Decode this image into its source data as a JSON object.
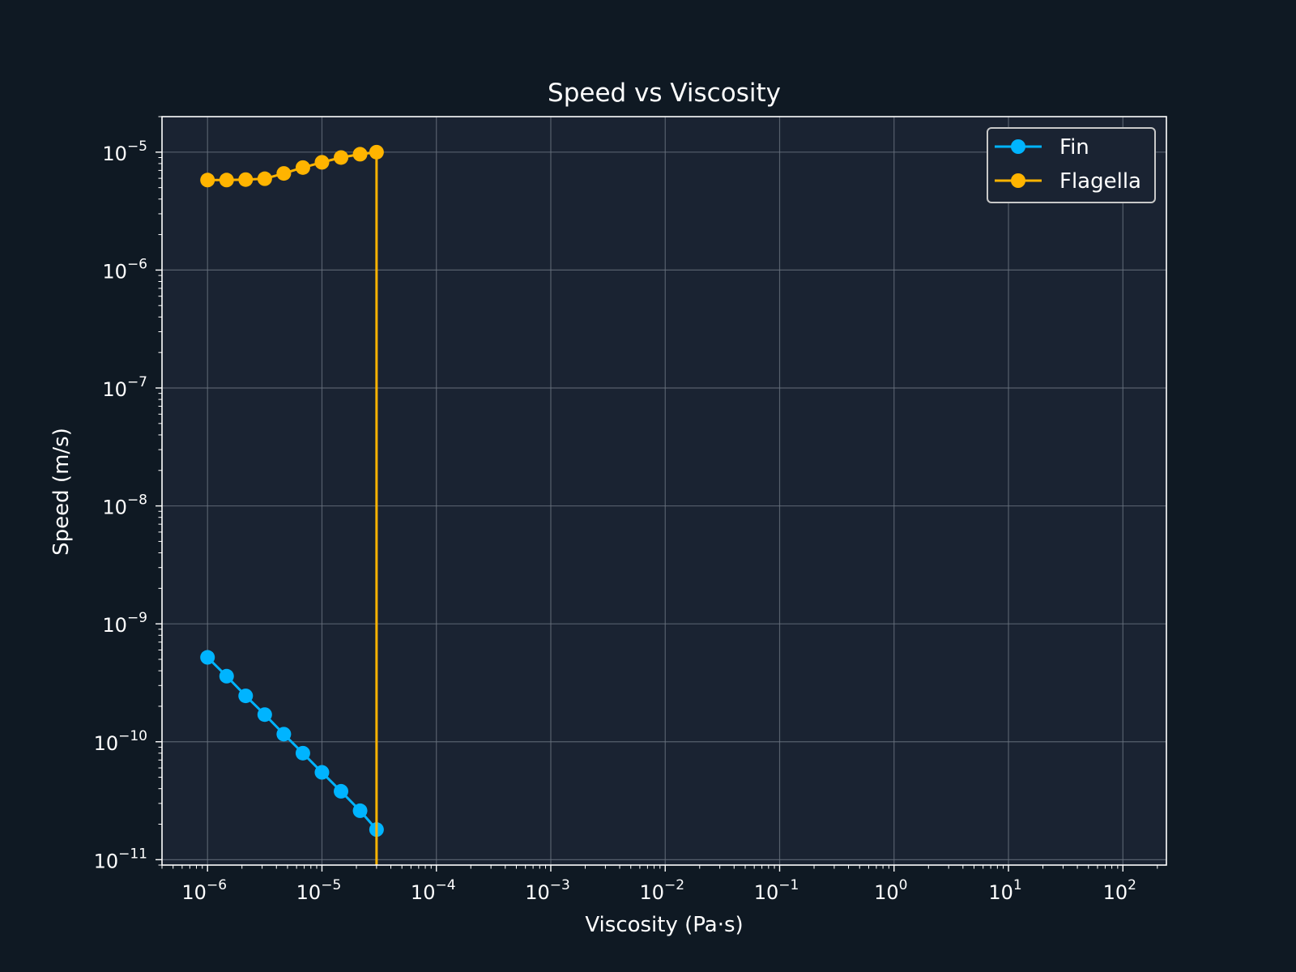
{
  "chart_data": {
    "type": "line",
    "title": "Speed vs Viscosity",
    "xlabel": "Viscosity (Pa·s)",
    "ylabel": "Speed (m/s)",
    "xscale": "log",
    "yscale": "log",
    "xlim": [
      4e-07,
      240
    ],
    "ylim": [
      9e-12,
      2e-05
    ],
    "x_ticks": [
      {
        "base": "10",
        "exp": "−6"
      },
      {
        "base": "10",
        "exp": "−5"
      },
      {
        "base": "10",
        "exp": "−4"
      },
      {
        "base": "10",
        "exp": "−3"
      },
      {
        "base": "10",
        "exp": "−2"
      },
      {
        "base": "10",
        "exp": "−1"
      },
      {
        "base": "10",
        "exp": "0"
      },
      {
        "base": "10",
        "exp": "1"
      },
      {
        "base": "10",
        "exp": "2"
      }
    ],
    "y_ticks": [
      {
        "base": "10",
        "exp": "−11"
      },
      {
        "base": "10",
        "exp": "−10"
      },
      {
        "base": "10",
        "exp": "−9"
      },
      {
        "base": "10",
        "exp": "−8"
      },
      {
        "base": "10",
        "exp": "−7"
      },
      {
        "base": "10",
        "exp": "−6"
      },
      {
        "base": "10",
        "exp": "−5"
      }
    ],
    "grid": true,
    "legend_position": "top-right",
    "series": [
      {
        "name": "Fin",
        "color": "#00b4ff",
        "x": [
          1e-06,
          1.468e-06,
          2.154e-06,
          3.162e-06,
          4.642e-06,
          6.813e-06,
          1e-05,
          1.468e-05,
          2.154e-05,
          3e-05
        ],
        "y": [
          5.2e-10,
          3.6e-10,
          2.45e-10,
          1.7e-10,
          1.16e-10,
          8e-11,
          5.5e-11,
          3.8e-11,
          2.6e-11,
          1.8e-11
        ]
      },
      {
        "name": "Flagella",
        "color": "#ffb400",
        "x": [
          1e-06,
          1.468e-06,
          2.154e-06,
          3.162e-06,
          4.642e-06,
          6.813e-06,
          1e-05,
          1.468e-05,
          2.154e-05,
          3e-05,
          3e-05
        ],
        "y": [
          5.8e-06,
          5.8e-06,
          5.85e-06,
          5.95e-06,
          6.6e-06,
          7.4e-06,
          8.2e-06,
          9e-06,
          9.6e-06,
          1e-05,
          9e-12
        ],
        "marker_count": 10
      }
    ],
    "colors": {
      "figure_bg": "#0f1923",
      "axes_bg": "#1a2332",
      "grid": "#6b7480",
      "spine": "#ffffff",
      "text": "#ffffff",
      "legend_bg": "#1a2332",
      "legend_border": "#c8c8c8"
    }
  }
}
